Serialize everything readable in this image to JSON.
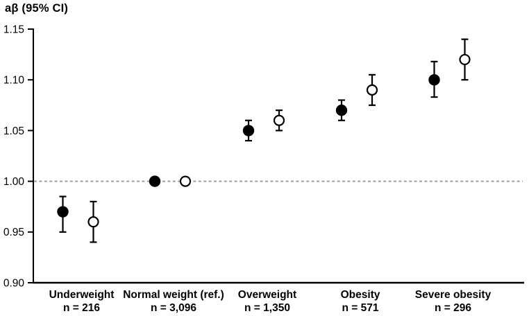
{
  "title": "aβ (95% CI)",
  "chart_data": {
    "type": "scatter",
    "title": "aβ (95% CI)",
    "ylabel": "aβ (95% CI)",
    "xlabel": "",
    "ylim": [
      0.9,
      1.15
    ],
    "yticks": [
      0.9,
      0.95,
      1.0,
      1.05,
      1.1,
      1.15
    ],
    "reference_line": 1.0,
    "grid": false,
    "legend_position": "none",
    "categories": [
      {
        "label": "Underweight",
        "n_label": "n = 216"
      },
      {
        "label": "Normal weight (ref.)",
        "n_label": "n = 3,096"
      },
      {
        "label": "Overweight",
        "n_label": "n = 1,350"
      },
      {
        "label": "Obesity",
        "n_label": "n = 571"
      },
      {
        "label": "Severe obesity",
        "n_label": "n = 296"
      }
    ],
    "series": [
      {
        "name": "filled-circle",
        "marker": "filled",
        "values": [
          {
            "est": 0.97,
            "lo": 0.95,
            "hi": 0.985
          },
          {
            "est": 1.0,
            "lo": null,
            "hi": null
          },
          {
            "est": 1.05,
            "lo": 1.04,
            "hi": 1.06
          },
          {
            "est": 1.07,
            "lo": 1.06,
            "hi": 1.08
          },
          {
            "est": 1.1,
            "lo": 1.083,
            "hi": 1.118
          }
        ]
      },
      {
        "name": "open-circle",
        "marker": "open",
        "values": [
          {
            "est": 0.96,
            "lo": 0.94,
            "hi": 0.98
          },
          {
            "est": 1.0,
            "lo": null,
            "hi": null
          },
          {
            "est": 1.06,
            "lo": 1.05,
            "hi": 1.07
          },
          {
            "est": 1.09,
            "lo": 1.075,
            "hi": 1.105
          },
          {
            "est": 1.12,
            "lo": 1.1,
            "hi": 1.14
          }
        ]
      }
    ],
    "colors": {
      "marker": "#000000",
      "open_marker_fill": "#ffffff",
      "reference_line": "#9e9e9e",
      "axis": "#000000",
      "text": "#000000",
      "background": "#ffffff"
    }
  }
}
